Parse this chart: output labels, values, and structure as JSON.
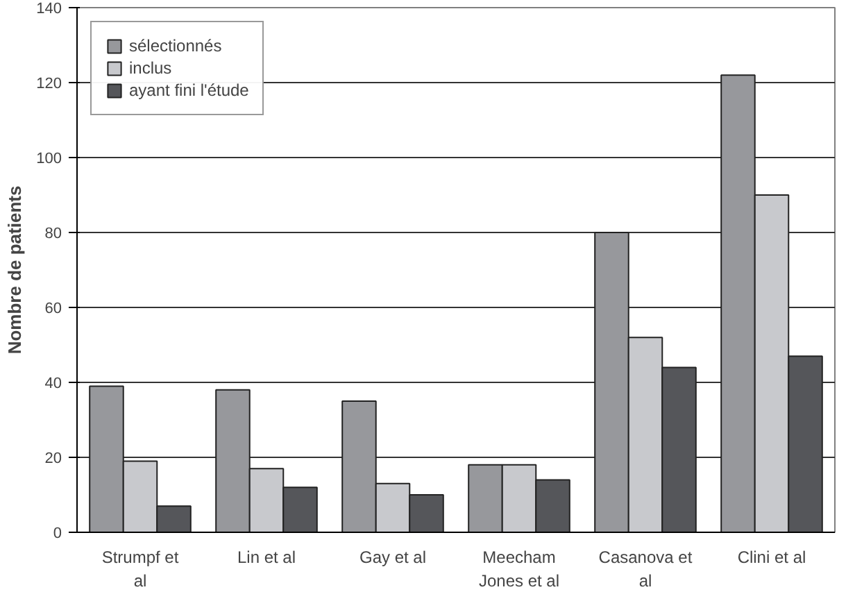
{
  "chart_data": {
    "type": "bar",
    "ylabel": "Nombre de patients",
    "categories": [
      "Strumpf et al",
      "Lin et al",
      "Gay et al",
      "Meecham Jones et al",
      "Casanova et al",
      "Clini et al"
    ],
    "series": [
      {
        "name": "sélectionnés",
        "color": "#97989c",
        "values": [
          39,
          38,
          35,
          18,
          80,
          122
        ]
      },
      {
        "name": "inclus",
        "color": "#c8c9cd",
        "values": [
          19,
          17,
          13,
          18,
          52,
          90
        ]
      },
      {
        "name": "ayant fini l'étude",
        "color": "#55565a",
        "values": [
          7,
          12,
          10,
          14,
          44,
          47
        ]
      }
    ],
    "ylim": [
      0,
      140
    ],
    "yticks": [
      0,
      20,
      40,
      60,
      80,
      100,
      120,
      140
    ],
    "grid": "y",
    "legend": "top left"
  }
}
